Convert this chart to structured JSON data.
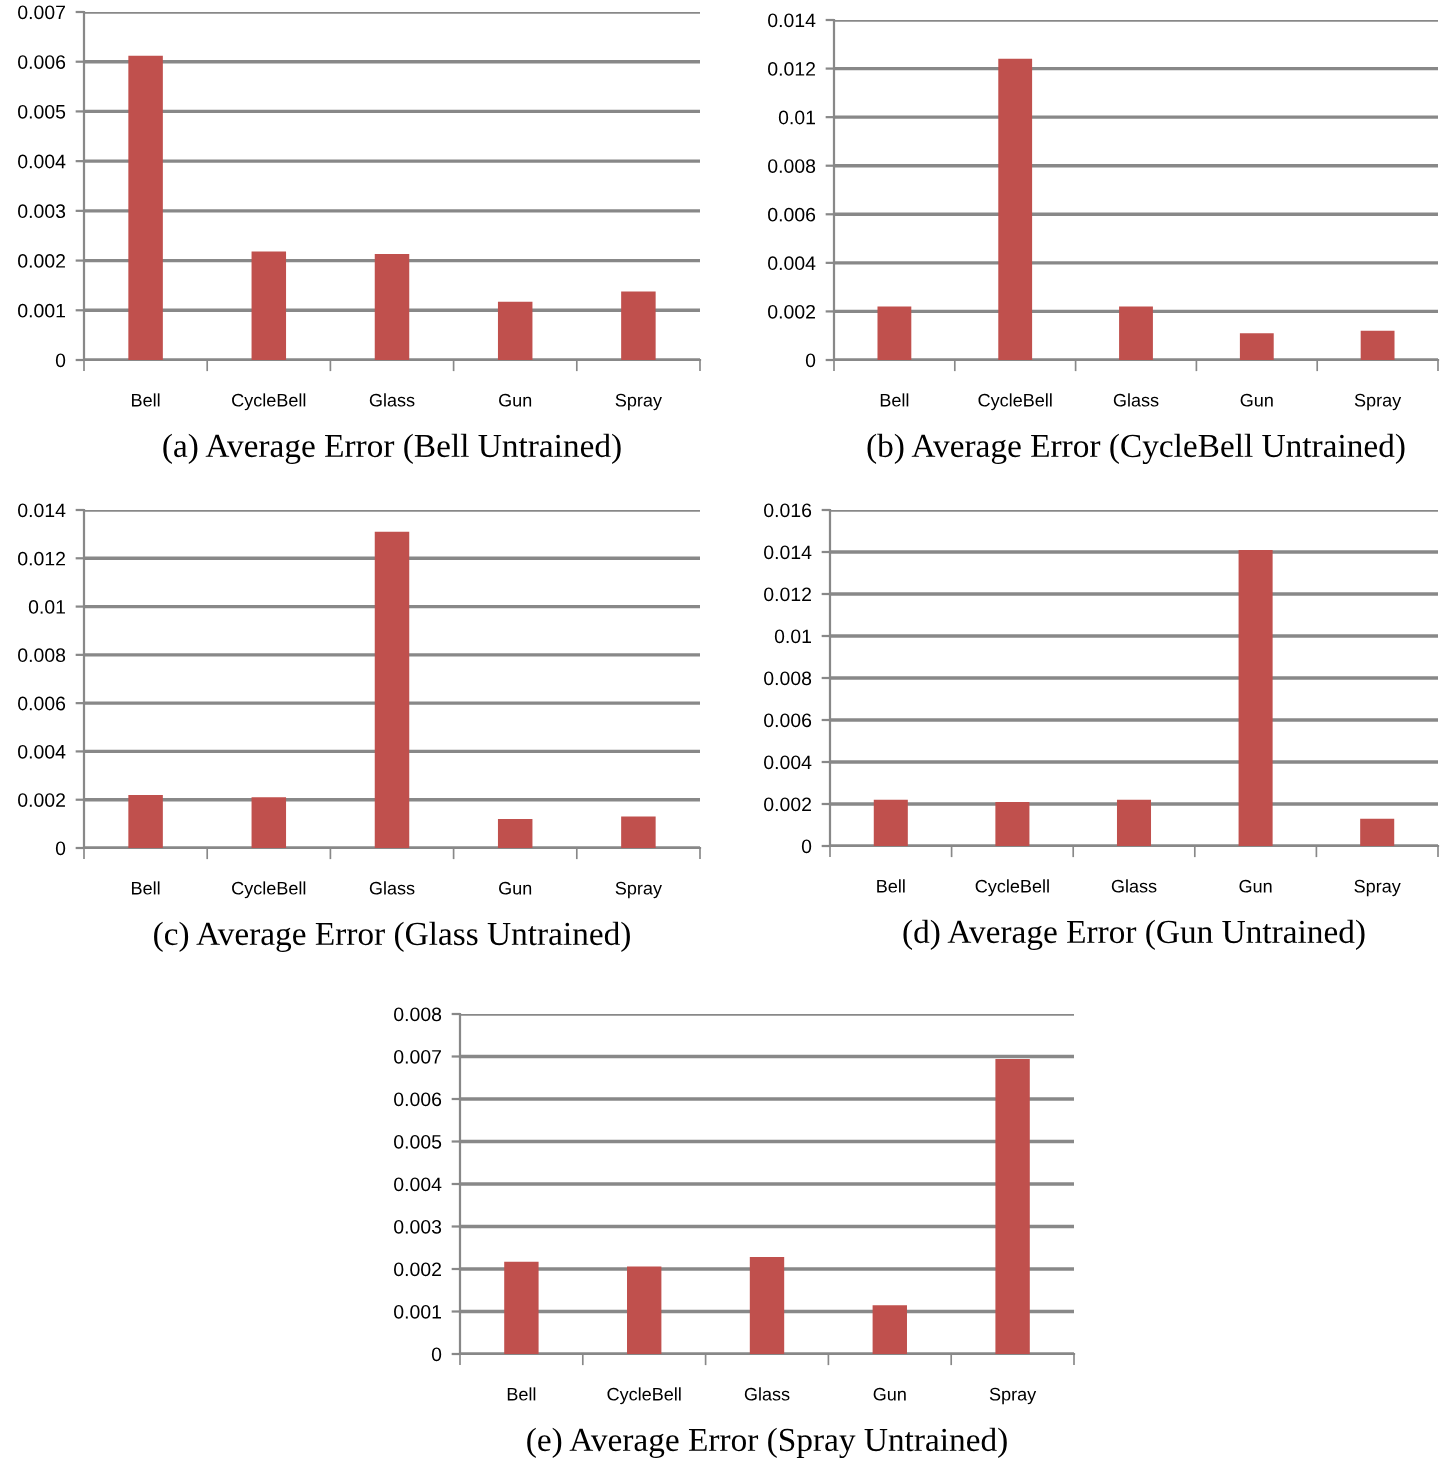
{
  "chart_data": [
    {
      "type": "bar",
      "title": "(a) Average Error (Bell Untrained)",
      "categories": [
        "Bell",
        "CycleBell",
        "Glass",
        "Gun",
        "Spray"
      ],
      "values": [
        0.00612,
        0.00218,
        0.00213,
        0.00117,
        0.00138
      ],
      "color": "#c0504d",
      "ylim": [
        0,
        0.007
      ],
      "yticks": [
        0,
        0.001,
        0.002,
        0.003,
        0.004,
        0.005,
        0.006,
        0.007
      ],
      "grid": "y"
    },
    {
      "type": "bar",
      "title": "(b) Average Error (CycleBell Untrained)",
      "categories": [
        "Bell",
        "CycleBell",
        "Glass",
        "Gun",
        "Spray"
      ],
      "values": [
        0.0022,
        0.0124,
        0.0022,
        0.0011,
        0.0012
      ],
      "color": "#c0504d",
      "ylim": [
        0,
        0.014
      ],
      "yticks": [
        0,
        0.002,
        0.004,
        0.006,
        0.008,
        0.01,
        0.012,
        0.014
      ],
      "grid": "y"
    },
    {
      "type": "bar",
      "title": "(c) Average Error (Glass Untrained)",
      "categories": [
        "Bell",
        "CycleBell",
        "Glass",
        "Gun",
        "Spray"
      ],
      "values": [
        0.0022,
        0.0021,
        0.0131,
        0.0012,
        0.0013
      ],
      "color": "#c0504d",
      "ylim": [
        0,
        0.014
      ],
      "yticks": [
        0,
        0.002,
        0.004,
        0.006,
        0.008,
        0.01,
        0.012,
        0.014
      ],
      "grid": "y"
    },
    {
      "type": "bar",
      "title": "(d) Average Error (Gun Untrained)",
      "categories": [
        "Bell",
        "CycleBell",
        "Glass",
        "Gun",
        "Spray"
      ],
      "values": [
        0.0022,
        0.0021,
        0.0022,
        0.0141,
        0.0013
      ],
      "color": "#c0504d",
      "ylim": [
        0,
        0.016
      ],
      "yticks": [
        0,
        0.002,
        0.004,
        0.006,
        0.008,
        0.01,
        0.012,
        0.014,
        0.016
      ],
      "grid": "y"
    },
    {
      "type": "bar",
      "title": "(e) Average Error (Spray Untrained)",
      "categories": [
        "Bell",
        "CycleBell",
        "Glass",
        "Gun",
        "Spray"
      ],
      "values": [
        0.00217,
        0.00206,
        0.00228,
        0.00115,
        0.00694
      ],
      "color": "#c0504d",
      "ylim": [
        0,
        0.008
      ],
      "yticks": [
        0,
        0.001,
        0.002,
        0.003,
        0.004,
        0.005,
        0.006,
        0.007,
        0.008
      ],
      "grid": "y"
    }
  ]
}
